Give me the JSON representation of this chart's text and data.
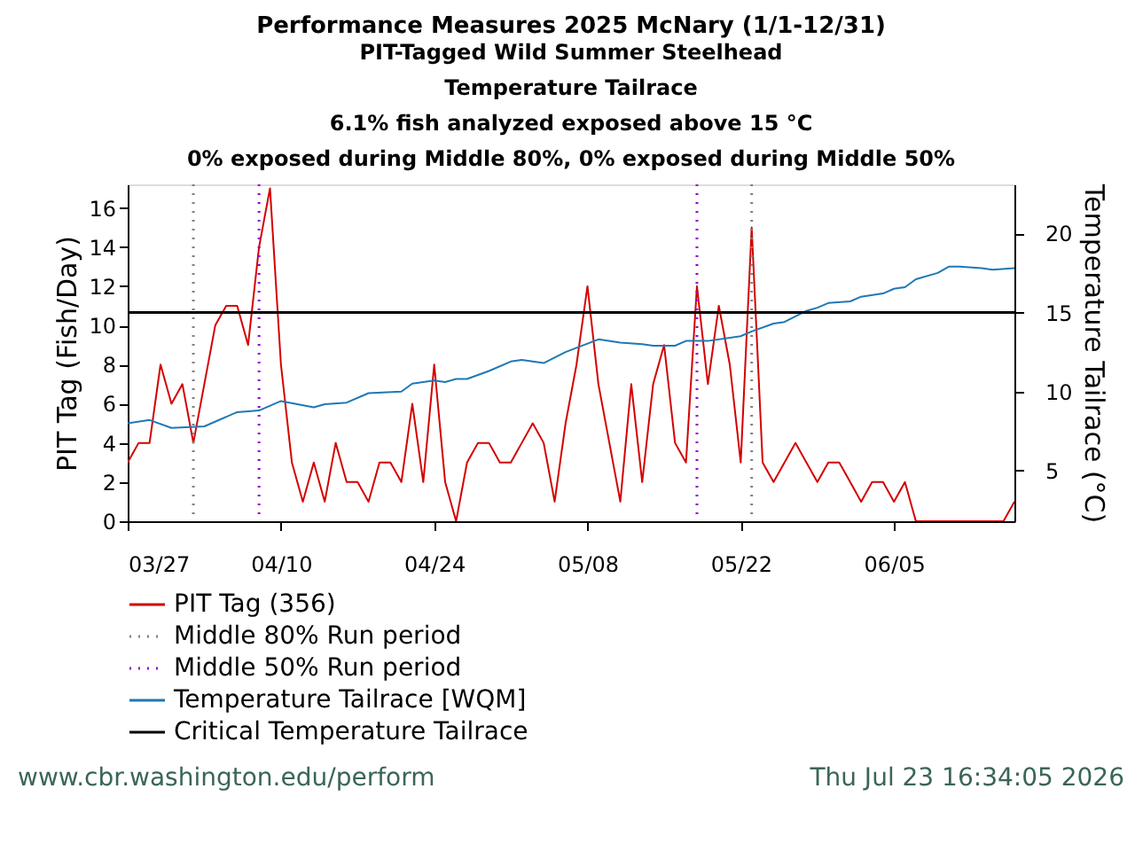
{
  "chart_data": {
    "type": "line",
    "title": "Performance Measures 2025 McNary (1/1-12/31)",
    "subtitle": "PIT-Tagged Wild Summer Steelhead\nTemperature Tailrace\n6.1% fish analyzed exposed above 15 °C\n0% exposed during Middle 80%, 0% exposed during Middle 50%",
    "ylabel": "PIT Tag (Fish/Day)",
    "y2label": "Temperature Tailrace (°C)",
    "x": [
      "2025-03-27",
      "2025-03-28",
      "2025-03-29",
      "2025-03-30",
      "2025-03-31",
      "2025-04-01",
      "2025-04-02",
      "2025-04-03",
      "2025-04-04",
      "2025-04-05",
      "2025-04-06",
      "2025-04-07",
      "2025-04-08",
      "2025-04-09",
      "2025-04-10",
      "2025-04-11",
      "2025-04-12",
      "2025-04-13",
      "2025-04-14",
      "2025-04-15",
      "2025-04-16",
      "2025-04-17",
      "2025-04-18",
      "2025-04-19",
      "2025-04-20",
      "2025-04-21",
      "2025-04-22",
      "2025-04-23",
      "2025-04-24",
      "2025-04-25",
      "2025-04-26",
      "2025-04-27",
      "2025-04-28",
      "2025-04-29",
      "2025-04-30",
      "2025-05-01",
      "2025-05-02",
      "2025-05-03",
      "2025-05-04",
      "2025-05-05",
      "2025-05-06",
      "2025-05-07",
      "2025-05-08",
      "2025-05-09",
      "2025-05-10",
      "2025-05-11",
      "2025-05-12",
      "2025-05-13",
      "2025-05-14",
      "2025-05-15",
      "2025-05-16",
      "2025-05-17",
      "2025-05-18",
      "2025-05-19",
      "2025-05-20",
      "2025-05-21",
      "2025-05-22",
      "2025-05-23",
      "2025-05-24",
      "2025-05-25",
      "2025-05-26",
      "2025-05-27",
      "2025-05-28",
      "2025-05-29",
      "2025-05-30",
      "2025-05-31",
      "2025-06-01",
      "2025-06-02",
      "2025-06-03",
      "2025-06-04",
      "2025-06-05",
      "2025-06-06",
      "2025-06-07",
      "2025-06-08",
      "2025-06-09",
      "2025-06-10",
      "2025-06-11",
      "2025-06-12",
      "2025-06-13",
      "2025-06-14",
      "2025-06-15",
      "2025-06-16"
    ],
    "series": [
      {
        "name": "PIT Tag (356)",
        "color": "#d40000",
        "values": [
          3,
          4,
          4,
          8,
          6,
          7,
          4,
          7,
          10,
          11,
          11,
          9,
          14,
          17,
          8,
          3,
          1,
          3,
          1,
          4,
          2,
          2,
          1,
          3,
          3,
          2,
          6,
          2,
          8,
          2,
          0,
          3,
          4,
          4,
          3,
          3,
          4,
          5,
          4,
          1,
          5,
          8,
          12,
          7,
          4,
          1,
          7,
          2,
          7,
          9,
          4,
          3,
          12,
          7,
          11,
          8,
          3,
          15,
          3,
          2,
          3,
          4,
          3,
          2,
          3,
          3,
          2,
          1,
          2,
          2,
          1,
          2,
          0,
          0,
          0,
          0,
          0,
          0,
          0,
          0,
          0,
          1
        ]
      },
      {
        "name": "Temperature Tailrace [WQM]",
        "color": "#1f78b4",
        "axis": "y2",
        "x": [
          "2025-03-27",
          "2025-03-29",
          "2025-03-31",
          "2025-04-03",
          "2025-04-06",
          "2025-04-08",
          "2025-04-10",
          "2025-04-13",
          "2025-04-14",
          "2025-04-16",
          "2025-04-18",
          "2025-04-21",
          "2025-04-22",
          "2025-04-24",
          "2025-04-25",
          "2025-04-26",
          "2025-04-27",
          "2025-04-29",
          "2025-05-01",
          "2025-05-02",
          "2025-05-04",
          "2025-05-06",
          "2025-05-09",
          "2025-05-11",
          "2025-05-13",
          "2025-05-14",
          "2025-05-16",
          "2025-05-17",
          "2025-05-19",
          "2025-05-22",
          "2025-05-23",
          "2025-05-25",
          "2025-05-26",
          "2025-05-28",
          "2025-05-29",
          "2025-05-30",
          "2025-06-01",
          "2025-06-02",
          "2025-06-04",
          "2025-06-05",
          "2025-06-06",
          "2025-06-07",
          "2025-06-09",
          "2025-06-10",
          "2025-06-11",
          "2025-06-13",
          "2025-06-14",
          "2025-06-16"
        ],
        "values": [
          8.0,
          8.2,
          7.7,
          7.8,
          8.7,
          8.8,
          9.4,
          9.0,
          9.2,
          9.3,
          9.9,
          10.0,
          10.5,
          10.7,
          10.6,
          10.8,
          10.8,
          11.3,
          11.9,
          12.0,
          11.8,
          12.5,
          13.3,
          13.1,
          13.0,
          12.9,
          12.9,
          13.2,
          13.2,
          13.5,
          13.8,
          14.3,
          14.4,
          15.1,
          15.3,
          15.6,
          15.7,
          16.0,
          16.2,
          16.5,
          16.6,
          17.1,
          17.5,
          17.9,
          17.9,
          17.8,
          17.7,
          17.8
        ]
      }
    ],
    "ref_lines": [
      {
        "axis": "x",
        "value": "2025-04-02",
        "label": "Middle 80% Run period",
        "color": "#808080",
        "line_style": "dotted"
      },
      {
        "axis": "x",
        "value": "2025-04-08",
        "label": "Middle 50% Run period",
        "color": "#9400d3",
        "line_style": "dotted"
      },
      {
        "axis": "x",
        "value": "2025-05-18",
        "color": "#9400d3",
        "line_style": "dotted"
      },
      {
        "axis": "x",
        "value": "2025-05-23",
        "color": "#808080",
        "line_style": "dotted"
      },
      {
        "axis": "y2",
        "value": 15,
        "label": "Critical Temperature Tailrace",
        "color": "#000000",
        "line_style": "solid"
      }
    ],
    "xlim": [
      "2025-03-27",
      "2025-06-16"
    ],
    "xticks": [
      {
        "value": "2025-03-27",
        "label": "03/27"
      },
      {
        "value": "2025-04-10",
        "label": "04/10"
      },
      {
        "value": "2025-04-24",
        "label": "04/24"
      },
      {
        "value": "2025-05-08",
        "label": "05/08"
      },
      {
        "value": "2025-05-22",
        "label": "05/22"
      },
      {
        "value": "2025-06-05",
        "label": "06/05"
      }
    ],
    "ylim": [
      0,
      17.2
    ],
    "yticks": [
      0,
      2,
      4,
      6,
      8,
      10,
      12,
      14,
      16
    ],
    "y2lim": [
      1.8,
      23.1
    ],
    "y2ticks": [
      5,
      10,
      15,
      20
    ],
    "legend": "bottom",
    "grid": false,
    "line_style": "solid",
    "annotations": [
      "www.cbr.washington.edu/perform",
      "Thu Jul 23 16:34:05 2026"
    ]
  }
}
